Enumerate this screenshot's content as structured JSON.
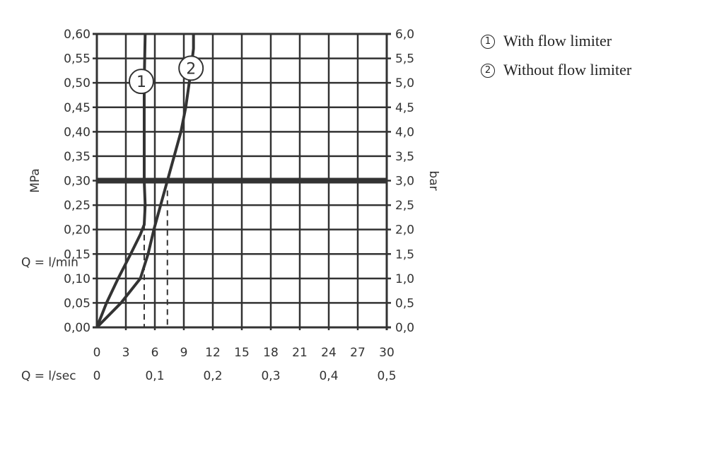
{
  "chart_data": {
    "type": "line",
    "xlabel": "Q = l/min",
    "x2label": "Q = l/sec",
    "ylabel": "MPa",
    "y2label": "bar",
    "xlim": [
      0,
      30
    ],
    "ylim": [
      0,
      0.6
    ],
    "grid": true,
    "x_ticks": [
      "0",
      "3",
      "6",
      "9",
      "12",
      "15",
      "18",
      "21",
      "24",
      "27",
      "30"
    ],
    "x2_ticks": [
      "0",
      "0,1",
      "0,2",
      "0,3",
      "0,4",
      "0,5"
    ],
    "y_ticks": [
      "0,00",
      "0,05",
      "0,10",
      "0,15",
      "0,20",
      "0,25",
      "0,30",
      "0,35",
      "0,40",
      "0,45",
      "0,50",
      "0,55",
      "0,60"
    ],
    "y2_ticks": [
      "0,0",
      "0,5",
      "1,0",
      "1,5",
      "2,0",
      "2,5",
      "3,0",
      "3,5",
      "4,0",
      "4,5",
      "5,0",
      "5,5",
      "6,0"
    ],
    "reference_line_y": 0.3,
    "series": [
      {
        "name": "With flow limiter",
        "marker": "1",
        "x": [
          0,
          1,
          2.2,
          3.5,
          4.5,
          4.9,
          5.0,
          4.9,
          4.9,
          4.9,
          5.0
        ],
        "y": [
          0,
          0.05,
          0.1,
          0.15,
          0.19,
          0.21,
          0.25,
          0.3,
          0.4,
          0.5,
          0.6
        ],
        "drop_x": 4.9
      },
      {
        "name": "Without flow limiter",
        "marker": "2",
        "x": [
          0,
          2.5,
          4.5,
          5.3,
          5.9,
          6.6,
          7.3,
          8.0,
          8.7,
          9.2,
          9.7,
          10,
          10
        ],
        "y": [
          0,
          0.05,
          0.1,
          0.15,
          0.2,
          0.25,
          0.3,
          0.35,
          0.4,
          0.45,
          0.52,
          0.57,
          0.6
        ],
        "drop_x": 7.3
      }
    ]
  },
  "legend": [
    {
      "marker": "①",
      "label": "With flow limiter"
    },
    {
      "marker": "②",
      "label": "Without flow limiter"
    }
  ]
}
